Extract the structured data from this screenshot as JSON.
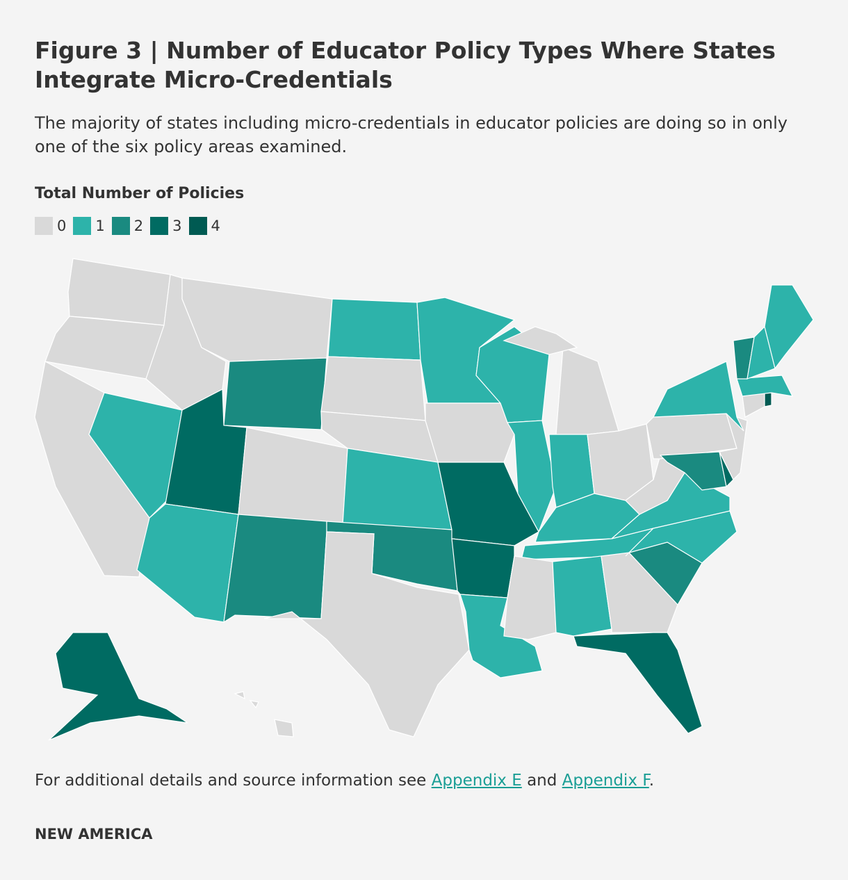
{
  "header": {
    "title": "Figure 3 | Number of Educator Policy Types Where States Integrate Micro-Credentials",
    "subtitle": "The majority of states including micro-credentials in educator policies are doing so in only one of the six policy areas examined."
  },
  "legend": {
    "title": "Total Number of Policies",
    "levels": [
      0,
      1,
      2,
      3,
      4
    ],
    "colors": [
      "#d9d9d9",
      "#2db3aa",
      "#1a8a80",
      "#006b62",
      "#005a52"
    ]
  },
  "map": {
    "values": [
      0,
      0,
      0,
      1,
      0,
      0,
      2,
      3,
      0,
      1,
      2,
      1,
      0,
      0,
      1,
      2,
      0,
      1,
      0,
      3,
      3,
      1,
      1,
      1,
      0,
      0,
      1,
      0,
      1,
      1,
      0,
      1,
      0,
      3,
      2,
      1,
      1,
      0,
      0,
      2,
      3,
      0,
      1,
      0,
      4,
      1,
      2,
      1,
      1,
      3,
      0
    ]
  },
  "footer": {
    "note": "For additional details and source information see",
    "link1": "Appendix E",
    "and": "and",
    "link2": "Appendix F",
    "end": ".",
    "brand": "NEW AMERICA"
  }
}
